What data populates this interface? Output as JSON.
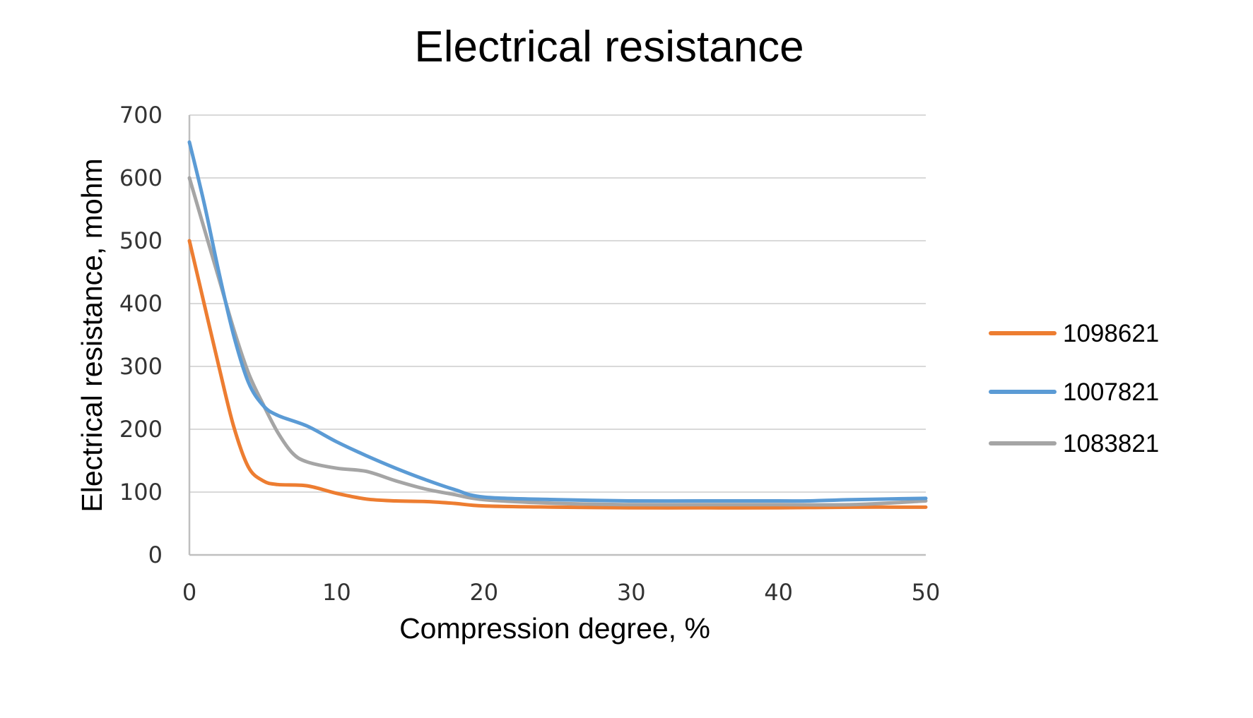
{
  "chart_data": {
    "type": "line",
    "title": "Electrical resistance",
    "xlabel": "Compression degree, %",
    "ylabel": "Electrical resistance, mohm",
    "xlim": [
      0,
      50
    ],
    "ylim": [
      0,
      700
    ],
    "x_ticks": [
      "0",
      "10",
      "20",
      "30",
      "40",
      "50"
    ],
    "y_ticks": [
      "0",
      "100",
      "200",
      "300",
      "400",
      "500",
      "600",
      "700"
    ],
    "grid": "horizontal",
    "legend_position": "right",
    "series": [
      {
        "name": "1098621",
        "color": "#ED7D31",
        "x": [
          0,
          1,
          2,
          3,
          4,
          5,
          6,
          8,
          10,
          12,
          14,
          16,
          18,
          20,
          25,
          30,
          35,
          40,
          45,
          50
        ],
        "y": [
          500,
          400,
          300,
          205,
          140,
          118,
          112,
          110,
          98,
          89,
          86,
          85,
          82,
          78,
          76,
          75,
          75,
          75,
          76,
          76
        ]
      },
      {
        "name": "1007821",
        "color": "#5B9BD5",
        "x": [
          0,
          1,
          2,
          3,
          4,
          5,
          6,
          8,
          10,
          12,
          14,
          16,
          18,
          20,
          25,
          30,
          35,
          40,
          42,
          45,
          50
        ],
        "y": [
          657,
          560,
          450,
          350,
          275,
          238,
          222,
          205,
          180,
          158,
          138,
          120,
          104,
          92,
          88,
          86,
          86,
          86,
          86,
          88,
          90
        ]
      },
      {
        "name": "1083821",
        "color": "#A5A5A5",
        "x": [
          0,
          1,
          2,
          3,
          4,
          5,
          6,
          7,
          8,
          10,
          12,
          14,
          16,
          18,
          20,
          25,
          30,
          35,
          40,
          45,
          50
        ],
        "y": [
          600,
          520,
          440,
          360,
          290,
          240,
          195,
          162,
          148,
          138,
          133,
          118,
          105,
          96,
          88,
          82,
          80,
          80,
          80,
          80,
          86
        ]
      }
    ]
  }
}
